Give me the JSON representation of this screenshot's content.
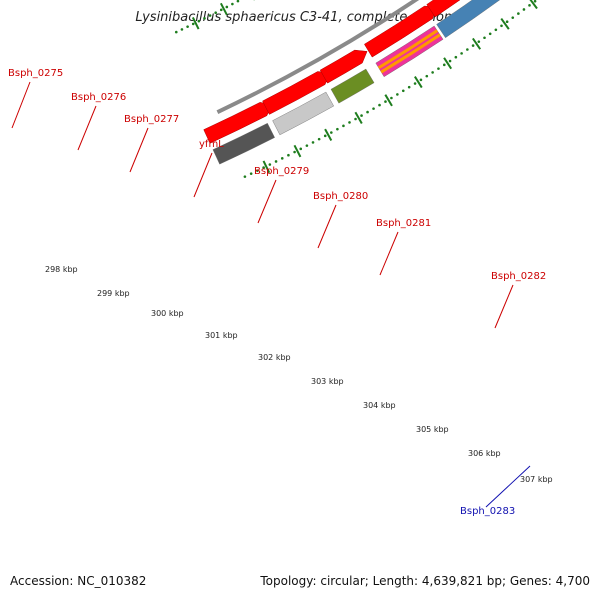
{
  "header": {
    "title": "Lysinibacillus sphaericus C3-41, complete genome"
  },
  "footer": {
    "accession": "Accession: NC_010382",
    "summary": "Topology: circular; Length: 4,639,821 bp; Genes: 4,700"
  },
  "colors": {
    "cds": "#ff0000",
    "tick": "#1e7d1e",
    "backbone": "#8a8a8a",
    "label_red": "#cc0000",
    "label_blue": "#1010b0"
  },
  "scale": {
    "kbp_ticks": [
      "298 kbp",
      "299 kbp",
      "300 kbp",
      "301 kbp",
      "302 kbp",
      "303 kbp",
      "304 kbp",
      "305 kbp",
      "306 kbp",
      "307 kbp"
    ]
  },
  "genes": [
    {
      "label": "Bsph_0275",
      "color": "#555555",
      "label_color": "red"
    },
    {
      "label": "Bsph_0276",
      "color": "#c8c8c8",
      "label_color": "red"
    },
    {
      "label": "Bsph_0277",
      "color": "#6b8e23",
      "label_color": "red"
    },
    {
      "label": "yfmL",
      "color": "#ee3399",
      "label_color": "red"
    },
    {
      "label": "Bsph_0279",
      "color": "#4682b4",
      "label_color": "red"
    },
    {
      "label": "Bsph_0280",
      "color": "#4682b4",
      "label_color": "red"
    },
    {
      "label": "Bsph_0281",
      "color": "#ff1493",
      "label_color": "red"
    },
    {
      "label": "Bsph_0282",
      "color": "#ff1493",
      "label_color": "red"
    },
    {
      "label": "Bsph_0283",
      "color": "#0000ee",
      "label_color": "blue"
    }
  ]
}
